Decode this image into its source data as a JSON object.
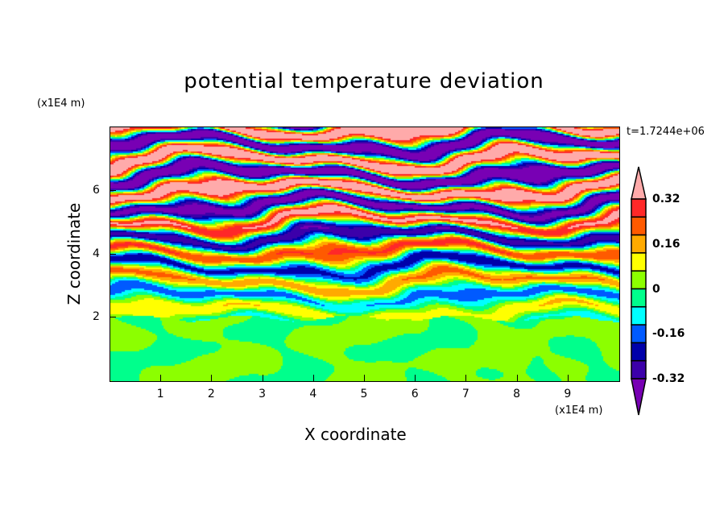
{
  "chart_data": {
    "type": "heatmap",
    "title": "potential temperature deviation",
    "xlabel": "X coordinate",
    "ylabel": "Z coordinate",
    "x_unit": "(x1E4 m)",
    "z_unit": "(x1E4 m)",
    "xlim": [
      0,
      10
    ],
    "ylim": [
      0,
      8
    ],
    "xticks": [
      1,
      2,
      3,
      4,
      5,
      6,
      7,
      8,
      9
    ],
    "yticks": [
      2,
      4,
      6
    ],
    "time_label": "t=1.7244e+06",
    "levels": [
      -0.4,
      -0.32,
      -0.24,
      -0.16,
      -0.08,
      0,
      0.08,
      0.16,
      0.24,
      0.32,
      0.4
    ],
    "colorbar_labels": [
      "0.32",
      "0.16",
      "0",
      "-0.16",
      "-0.32"
    ],
    "colorbar_label_values": [
      0.32,
      0.16,
      0,
      -0.16,
      -0.32
    ],
    "colors": [
      "#7800b4",
      "#3c00aa",
      "#0000aa",
      "#005aff",
      "#00ffff",
      "#00ff8c",
      "#8cff00",
      "#ffff00",
      "#ffaa00",
      "#ff5a00",
      "#ff2828",
      "#ffaaaa"
    ]
  }
}
